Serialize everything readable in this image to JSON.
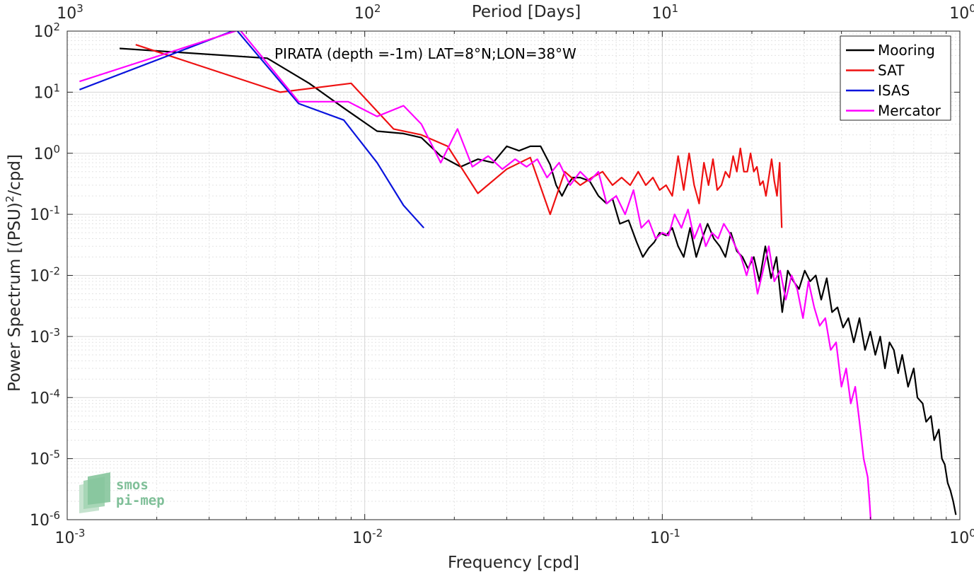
{
  "chart_data": {
    "type": "line",
    "title": "PIRATA (depth =-1m) LAT=8°N;LON=38°W",
    "xlabel": "Frequency [cpd]",
    "ylabel": "Power Spectrum [(PSU)²/cpd]",
    "top_xlabel": "Period [Days]",
    "xscale": "log",
    "yscale": "log",
    "xlim": [
      0.001,
      1
    ],
    "ylim": [
      1e-06,
      100
    ],
    "grid": true,
    "legend_position": "top-right",
    "x_ticks": [
      {
        "base": "10",
        "exp": "-3"
      },
      {
        "base": "10",
        "exp": "-2"
      },
      {
        "base": "10",
        "exp": "-1"
      },
      {
        "base": "10",
        "exp": "0"
      }
    ],
    "top_x_ticks": [
      {
        "base": "10",
        "exp": "3"
      },
      {
        "base": "10",
        "exp": "2"
      },
      {
        "base": "10",
        "exp": "1"
      },
      {
        "base": "10",
        "exp": "0"
      }
    ],
    "y_ticks": [
      {
        "base": "10",
        "exp": "2"
      },
      {
        "base": "10",
        "exp": "1"
      },
      {
        "base": "10",
        "exp": "0"
      },
      {
        "base": "10",
        "exp": "-1"
      },
      {
        "base": "10",
        "exp": "-2"
      },
      {
        "base": "10",
        "exp": "-3"
      },
      {
        "base": "10",
        "exp": "-4"
      },
      {
        "base": "10",
        "exp": "-5"
      },
      {
        "base": "10",
        "exp": "-6"
      }
    ],
    "series": [
      {
        "name": "Mooring",
        "color": "#000000",
        "x": [
          0.0015,
          0.0047,
          0.0065,
          0.0085,
          0.011,
          0.0135,
          0.0155,
          0.018,
          0.021,
          0.024,
          0.027,
          0.03,
          0.033,
          0.036,
          0.039,
          0.042,
          0.044,
          0.046,
          0.048,
          0.05,
          0.053,
          0.057,
          0.061,
          0.065,
          0.068,
          0.072,
          0.077,
          0.082,
          0.086,
          0.09,
          0.094,
          0.098,
          0.103,
          0.108,
          0.113,
          0.118,
          0.124,
          0.13,
          0.136,
          0.142,
          0.149,
          0.156,
          0.163,
          0.17,
          0.178,
          0.186,
          0.194,
          0.203,
          0.212,
          0.222,
          0.232,
          0.242,
          0.253,
          0.264,
          0.276,
          0.288,
          0.301,
          0.314,
          0.328,
          0.342,
          0.357,
          0.372,
          0.388,
          0.405,
          0.422,
          0.44,
          0.46,
          0.48,
          0.5,
          0.52,
          0.54,
          0.56,
          0.58,
          0.6,
          0.62,
          0.64,
          0.67,
          0.7,
          0.72,
          0.75,
          0.77,
          0.8,
          0.82,
          0.85,
          0.87,
          0.89,
          0.91,
          0.93,
          0.95,
          0.97
        ],
        "values": [
          52,
          36,
          14,
          5.5,
          2.3,
          2.1,
          1.8,
          0.9,
          0.6,
          0.8,
          0.7,
          1.3,
          1.1,
          1.3,
          1.3,
          0.65,
          0.3,
          0.2,
          0.3,
          0.4,
          0.4,
          0.35,
          0.2,
          0.15,
          0.18,
          0.07,
          0.08,
          0.035,
          0.02,
          0.028,
          0.035,
          0.05,
          0.045,
          0.06,
          0.03,
          0.02,
          0.06,
          0.02,
          0.04,
          0.07,
          0.04,
          0.03,
          0.02,
          0.05,
          0.025,
          0.02,
          0.013,
          0.02,
          0.008,
          0.03,
          0.009,
          0.02,
          0.0025,
          0.012,
          0.008,
          0.006,
          0.012,
          0.008,
          0.01,
          0.004,
          0.009,
          0.0025,
          0.003,
          0.0014,
          0.002,
          0.0008,
          0.002,
          0.0006,
          0.0012,
          0.0005,
          0.001,
          0.0003,
          0.0008,
          0.0006,
          0.00025,
          0.0005,
          0.00015,
          0.0003,
          0.0001,
          8e-05,
          4e-05,
          5e-05,
          2e-05,
          3e-05,
          1e-05,
          8e-06,
          4e-06,
          3e-06,
          2e-06,
          1.2e-06
        ]
      },
      {
        "name": "SAT",
        "color": "#ee1111",
        "x": [
          0.0017,
          0.0052,
          0.009,
          0.0125,
          0.0155,
          0.019,
          0.024,
          0.03,
          0.036,
          0.042,
          0.047,
          0.053,
          0.058,
          0.063,
          0.068,
          0.073,
          0.078,
          0.083,
          0.088,
          0.093,
          0.098,
          0.103,
          0.108,
          0.113,
          0.118,
          0.123,
          0.128,
          0.133,
          0.138,
          0.143,
          0.148,
          0.153,
          0.158,
          0.163,
          0.168,
          0.173,
          0.178,
          0.183,
          0.188,
          0.193,
          0.198,
          0.203,
          0.208,
          0.213,
          0.218,
          0.223,
          0.228,
          0.233,
          0.238,
          0.243,
          0.248,
          0.252
        ],
        "values": [
          60,
          10,
          14,
          2.5,
          2.0,
          1.3,
          0.22,
          0.55,
          0.85,
          0.1,
          0.5,
          0.3,
          0.4,
          0.5,
          0.3,
          0.4,
          0.3,
          0.5,
          0.3,
          0.4,
          0.25,
          0.3,
          0.2,
          0.9,
          0.25,
          1.0,
          0.3,
          0.15,
          0.7,
          0.3,
          0.8,
          0.25,
          0.3,
          0.5,
          0.4,
          0.9,
          0.5,
          1.2,
          0.5,
          0.5,
          1.0,
          0.5,
          0.6,
          0.3,
          0.35,
          0.2,
          0.4,
          0.8,
          0.35,
          0.2,
          0.7,
          0.06
        ]
      },
      {
        "name": "ISAS",
        "color": "#0a14dd",
        "x": [
          0.0011,
          0.0037,
          0.006,
          0.0085,
          0.011,
          0.0135,
          0.0158
        ],
        "values": [
          11,
          110,
          6.5,
          3.5,
          0.7,
          0.14,
          0.06
        ]
      },
      {
        "name": "Mercator",
        "color": "#ff00ff",
        "x": [
          0.0011,
          0.0038,
          0.006,
          0.0088,
          0.011,
          0.0135,
          0.0155,
          0.018,
          0.0205,
          0.023,
          0.026,
          0.029,
          0.032,
          0.035,
          0.038,
          0.041,
          0.045,
          0.049,
          0.053,
          0.057,
          0.061,
          0.065,
          0.07,
          0.075,
          0.08,
          0.085,
          0.09,
          0.095,
          0.1,
          0.105,
          0.11,
          0.116,
          0.122,
          0.128,
          0.134,
          0.14,
          0.147,
          0.154,
          0.161,
          0.168,
          0.176,
          0.184,
          0.192,
          0.2,
          0.209,
          0.218,
          0.228,
          0.238,
          0.249,
          0.26,
          0.272,
          0.284,
          0.297,
          0.31,
          0.324,
          0.338,
          0.353,
          0.368,
          0.384,
          0.4,
          0.415,
          0.43,
          0.445,
          0.46,
          0.475,
          0.49,
          0.497,
          0.502
        ],
        "values": [
          15,
          120,
          7,
          7,
          4,
          6,
          3,
          0.7,
          2.5,
          0.6,
          0.9,
          0.55,
          0.8,
          0.6,
          0.8,
          0.4,
          0.7,
          0.3,
          0.5,
          0.35,
          0.5,
          0.15,
          0.2,
          0.1,
          0.25,
          0.06,
          0.08,
          0.04,
          0.05,
          0.045,
          0.1,
          0.06,
          0.12,
          0.04,
          0.07,
          0.03,
          0.05,
          0.04,
          0.07,
          0.05,
          0.03,
          0.02,
          0.01,
          0.02,
          0.005,
          0.012,
          0.03,
          0.008,
          0.012,
          0.004,
          0.01,
          0.006,
          0.002,
          0.008,
          0.003,
          0.0015,
          0.002,
          0.0006,
          0.0008,
          0.00015,
          0.0003,
          8e-05,
          0.00015,
          4e-05,
          1e-05,
          5e-06,
          2e-06,
          8e-07
        ]
      }
    ]
  },
  "watermark": {
    "line1": "smos",
    "line2": "pi-mep"
  }
}
